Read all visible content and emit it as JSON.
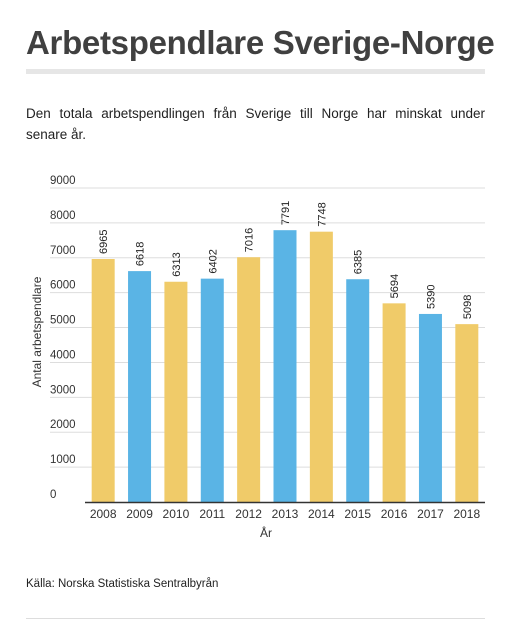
{
  "header": {
    "title": "Arbetspendlare Sverige-Norge",
    "subtitle": "Den totala arbetspendlingen från Sverige till Norge har minskat under senare år."
  },
  "footer": {
    "source": "Källa: Norska Statistiska Sentralbyrån"
  },
  "chart_data": {
    "type": "bar",
    "title": "",
    "xlabel": "År",
    "ylabel": "Antal arbetspendlare",
    "categories": [
      "2008",
      "2009",
      "2010",
      "2011",
      "2012",
      "2013",
      "2014",
      "2015",
      "2016",
      "2017",
      "2018"
    ],
    "values": [
      6965,
      6618,
      6313,
      6402,
      7016,
      7791,
      7748,
      6385,
      5694,
      5390,
      5098
    ],
    "bar_colors": [
      "#f0cb69",
      "#5ab4e5",
      "#f0cb69",
      "#5ab4e5",
      "#f0cb69",
      "#5ab4e5",
      "#f0cb69",
      "#5ab4e5",
      "#f0cb69",
      "#5ab4e5",
      "#f0cb69"
    ],
    "yticks": [
      0,
      1000,
      2000,
      3000,
      4000,
      5000,
      6000,
      7000,
      8000,
      9000
    ],
    "ylim": [
      0,
      9000
    ],
    "grid": true,
    "data_labels": true
  }
}
